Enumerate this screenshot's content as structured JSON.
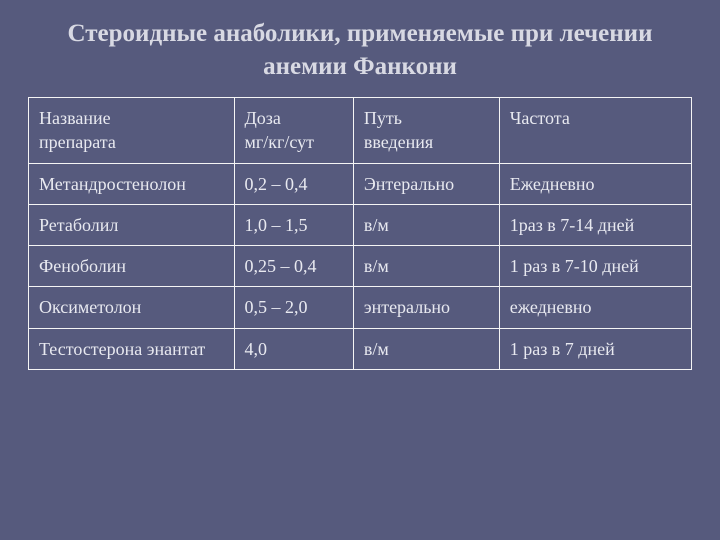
{
  "title": "Стероидные анаболики, применяемые при лечении анемии Фанкони",
  "table": {
    "columns": [
      {
        "line1": "Название",
        "line2": "препарата"
      },
      {
        "line1": "Доза",
        "line2": "мг/кг/сут"
      },
      {
        "line1": "Путь",
        "line2": "введения"
      },
      {
        "line1": "Частота",
        "line2": ""
      }
    ],
    "rows": [
      {
        "name": "Метандростенолон",
        "dose": "0,2 – 0,4",
        "route": "Энтерально",
        "freq": "Ежедневно"
      },
      {
        "name": "Ретаболил",
        "dose": "1,0 – 1,5",
        "route": "в/м",
        "freq": "1раз в 7-14 дней"
      },
      {
        "name": "Феноболин",
        "dose": "0,25 – 0,4",
        "route": "в/м",
        "freq": "1 раз в 7-10 дней"
      },
      {
        "name": "Оксиметолон",
        "dose": "0,5 – 2,0",
        "route": "энтерально",
        "freq": "ежедневно"
      },
      {
        "name": "Тестостерона энантат",
        "dose": "4,0",
        "route": "в/м",
        "freq": "1 раз в 7 дней"
      }
    ]
  },
  "styling": {
    "background_color": "#565a7d",
    "title_color": "#d8d9e3",
    "cell_text_color": "#e8e9f0",
    "border_color": "#f5f5f5",
    "title_fontsize": 25,
    "cell_fontsize": 18,
    "col_widths_pct": [
      31,
      18,
      22,
      29
    ]
  }
}
